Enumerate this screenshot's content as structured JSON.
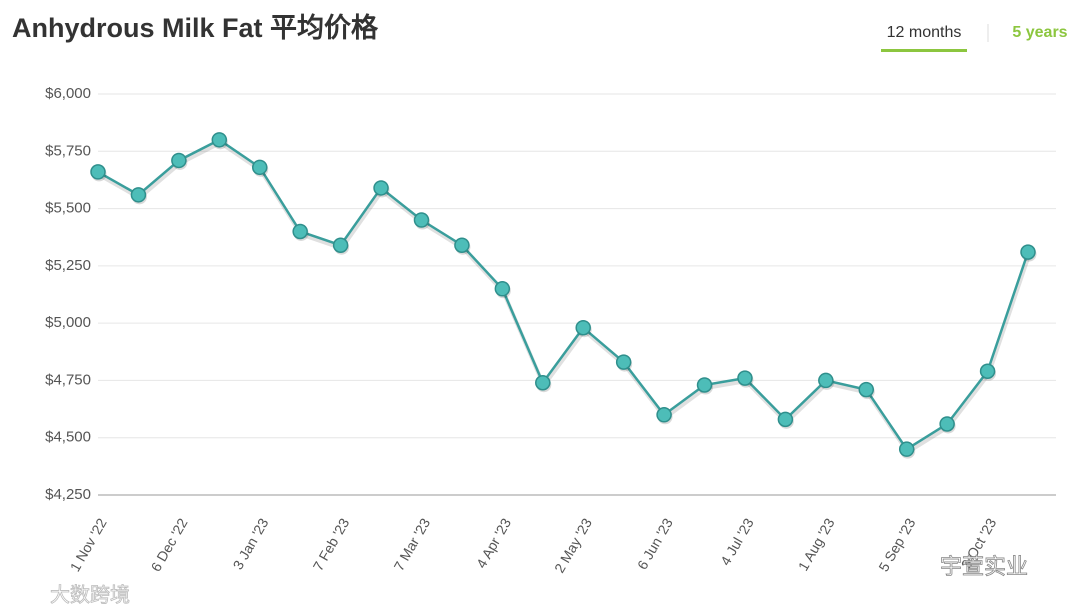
{
  "chart_data": {
    "type": "line",
    "title": "Anhydrous Milk Fat 平均价格",
    "tabs": [
      "12 months",
      "5 years"
    ],
    "active_tab": 0,
    "categories": [
      "1 Nov '22",
      null,
      "6 Dec '22",
      null,
      "3 Jan '23",
      null,
      "7 Feb '23",
      null,
      "7 Mar '23",
      null,
      "4 Apr '23",
      null,
      "2 May '23",
      null,
      "6 Jun '23",
      null,
      "4 Jul '23",
      null,
      "1 Aug '23",
      null,
      "5 Sep '23",
      null,
      "3 Oct '23",
      null
    ],
    "series": [
      {
        "name": "Anhydrous Milk Fat",
        "color": "#3a9e9c",
        "values": [
          5660,
          5560,
          5710,
          5800,
          5680,
          5400,
          5340,
          5590,
          5450,
          5340,
          5150,
          4740,
          4980,
          4830,
          4600,
          4730,
          4760,
          4580,
          4750,
          4710,
          4450,
          4560,
          4790,
          5310
        ]
      }
    ],
    "ylim": [
      4250,
      6000
    ],
    "yticks": [
      {
        "value": 4250,
        "label": "$4,250"
      },
      {
        "value": 4500,
        "label": "$4,500"
      },
      {
        "value": 4750,
        "label": "$4,750"
      },
      {
        "value": 5000,
        "label": "$5,000"
      },
      {
        "value": 5250,
        "label": "$5,250"
      },
      {
        "value": 5500,
        "label": "$5,500"
      },
      {
        "value": 5750,
        "label": "$5,750"
      },
      {
        "value": 6000,
        "label": "$6,000"
      }
    ],
    "grid": true,
    "watermarks": [
      "大数跨境",
      "宇萱实业"
    ]
  }
}
